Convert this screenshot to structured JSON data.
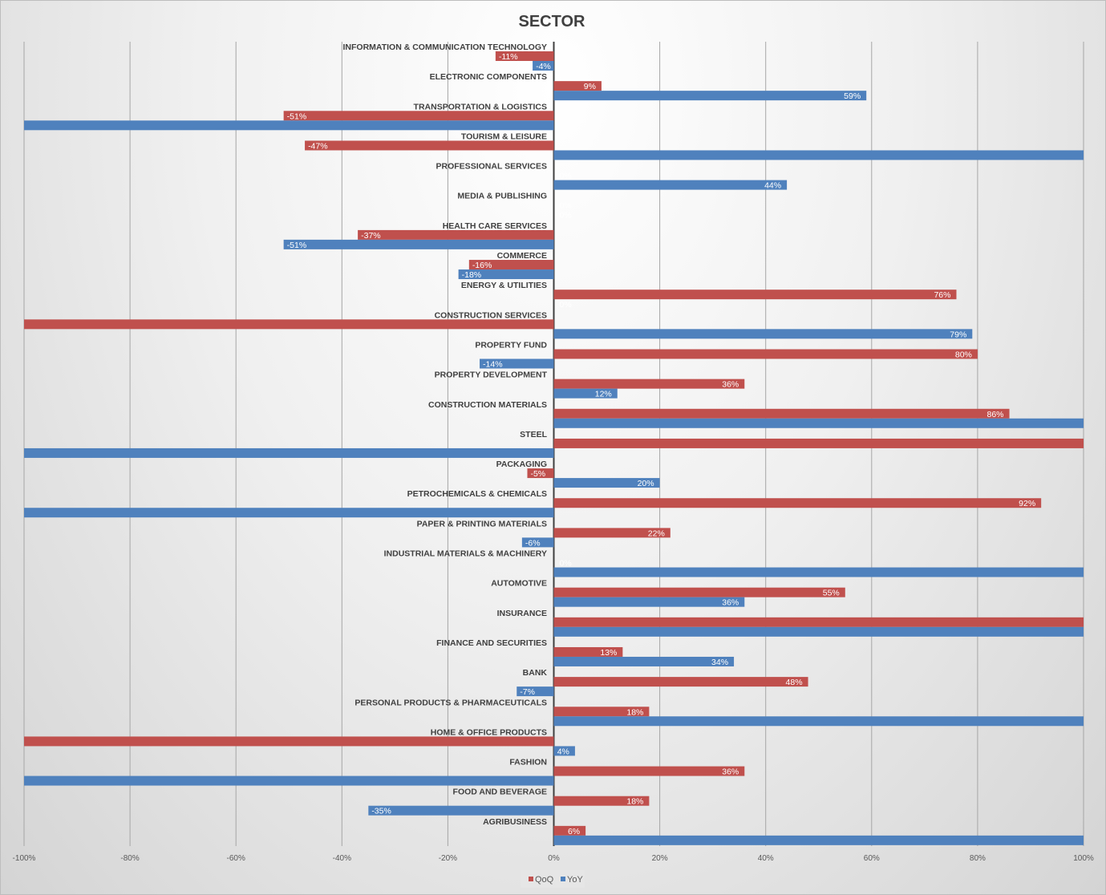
{
  "chart_data": {
    "type": "bar",
    "orientation": "horizontal",
    "title": "SECTOR",
    "xlim": [
      -100,
      100
    ],
    "x_unit": "%",
    "x_ticks": [
      "-100%",
      "-80%",
      "-60%",
      "-40%",
      "-20%",
      "0%",
      "20%",
      "40%",
      "60%",
      "80%",
      "100%"
    ],
    "grid": true,
    "legend_position": "bottom",
    "note": "",
    "categories": [
      "INFORMATION & COMMUNICATION  TECHNOLOGY",
      "ELECTRONIC COMPONENTS",
      "TRANSPORTATION & LOGISTICS",
      "TOURISM & LEISURE",
      "PROFESSIONAL SERVICES",
      "MEDIA & PUBLISHING",
      "HEALTH CARE SERVICES",
      "COMMERCE",
      "ENERGY & UTILITIES",
      "CONSTRUCTION SERVICES",
      "PROPERTY FUND",
      "PROPERTY DEVELOPMENT",
      "CONSTRUCTION MATERIALS",
      "STEEL",
      "PACKAGING",
      "PETROCHEMICALS  & CHEMICALS",
      "PAPER & PRINTING MATERIALS",
      "INDUSTRIAL MATERIALS & MACHINERY",
      "AUTOMOTIVE",
      "INSURANCE",
      "FINANCE AND SECURITIES",
      "BANK",
      "PERSONAL PRODUCTS & PHARMACEUTICALS",
      "HOME & OFFICE PRODUCTS",
      "FASHION",
      "FOOD AND BEVERAGE",
      "AGRIBUSINESS"
    ],
    "series": [
      {
        "name": "QoQ",
        "color": "#c0504d",
        "values": [
          -11,
          9,
          -51,
          -47,
          0,
          0,
          -37,
          -16,
          76,
          -100,
          80,
          36,
          86,
          100,
          -5,
          92,
          22,
          0,
          55,
          100,
          13,
          48,
          18,
          -100,
          36,
          18,
          6
        ]
      },
      {
        "name": "YoY",
        "color": "#4f81bd",
        "values": [
          -4,
          59,
          -100,
          100,
          44,
          0,
          -51,
          -18,
          0,
          79,
          -14,
          12,
          100,
          -100,
          20,
          -100,
          -6,
          100,
          36,
          100,
          34,
          -7,
          100,
          4,
          -100,
          -35,
          100
        ]
      }
    ]
  }
}
